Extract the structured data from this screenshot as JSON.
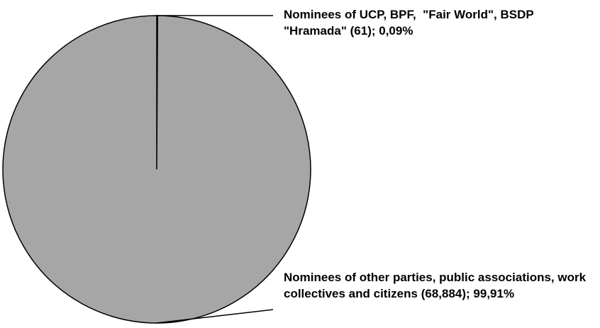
{
  "chart_data": {
    "type": "pie",
    "categories": [
      "Nominees of UCP, BPF,  \"Fair World\", BSDP \"Hramada\"",
      "Nominees of other parties, public associations, work collectives and citizens"
    ],
    "values": [
      0.09,
      99.91
    ],
    "value_labels": [
      "(61); 0,09%",
      "(68,884); 99,91%"
    ],
    "colors": [
      "#a6a6a6",
      "#a6a6a6"
    ]
  }
}
